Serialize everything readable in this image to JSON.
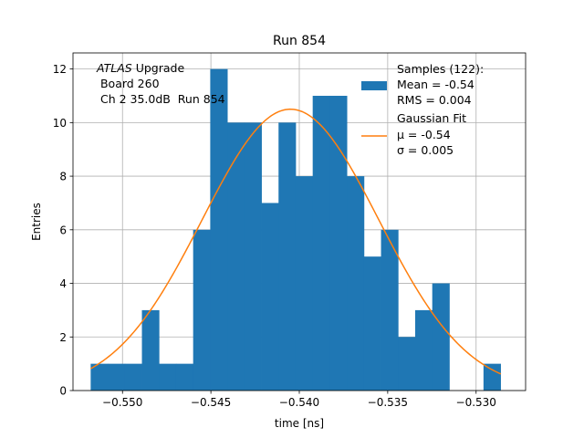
{
  "chart_data": {
    "type": "histogram",
    "title": "Run 854",
    "xlabel": "time [ns]",
    "ylabel": "Entries",
    "xlim": [
      -0.5528,
      -0.5272
    ],
    "ylim": [
      0,
      12.6
    ],
    "grid": true,
    "xticks": [
      -0.55,
      -0.545,
      -0.54,
      -0.535,
      -0.53
    ],
    "xtick_labels": [
      "−0.550",
      "−0.545",
      "−0.540",
      "−0.535",
      "−0.530"
    ],
    "yticks": [
      0,
      2,
      4,
      6,
      8,
      10,
      12
    ],
    "ytick_labels": [
      "0",
      "2",
      "4",
      "6",
      "8",
      "10",
      "12"
    ],
    "bin_start": -0.5518,
    "bin_width": 0.000966,
    "counts": [
      1,
      1,
      1,
      3,
      1,
      1,
      6,
      12,
      10,
      10,
      7,
      10,
      8,
      11,
      11,
      8,
      5,
      6,
      2,
      3,
      4,
      0,
      0,
      1
    ],
    "fit": {
      "name": "Gaussian Fit",
      "mu": -0.5405,
      "sigma": 0.005,
      "amplitude": 10.5,
      "x_range": [
        -0.5518,
        -0.5286
      ]
    },
    "colors": {
      "bars": "#1f77b4",
      "fit": "#ff7f0e",
      "grid": "#b0b0b0"
    },
    "legend": {
      "position": "upper right",
      "samples_lines": [
        "Samples (122):",
        "Mean = -0.54",
        "RMS = 0.004"
      ],
      "fit_lines": [
        "Gaussian Fit",
        "μ = -0.54",
        "σ = 0.005"
      ]
    },
    "annotation": {
      "position": "upper left",
      "atlas": "ATLAS",
      "upgrade": " Upgrade",
      "line2": " Board 260",
      "line3": " Ch 2 35.0dB  Run 854"
    }
  }
}
